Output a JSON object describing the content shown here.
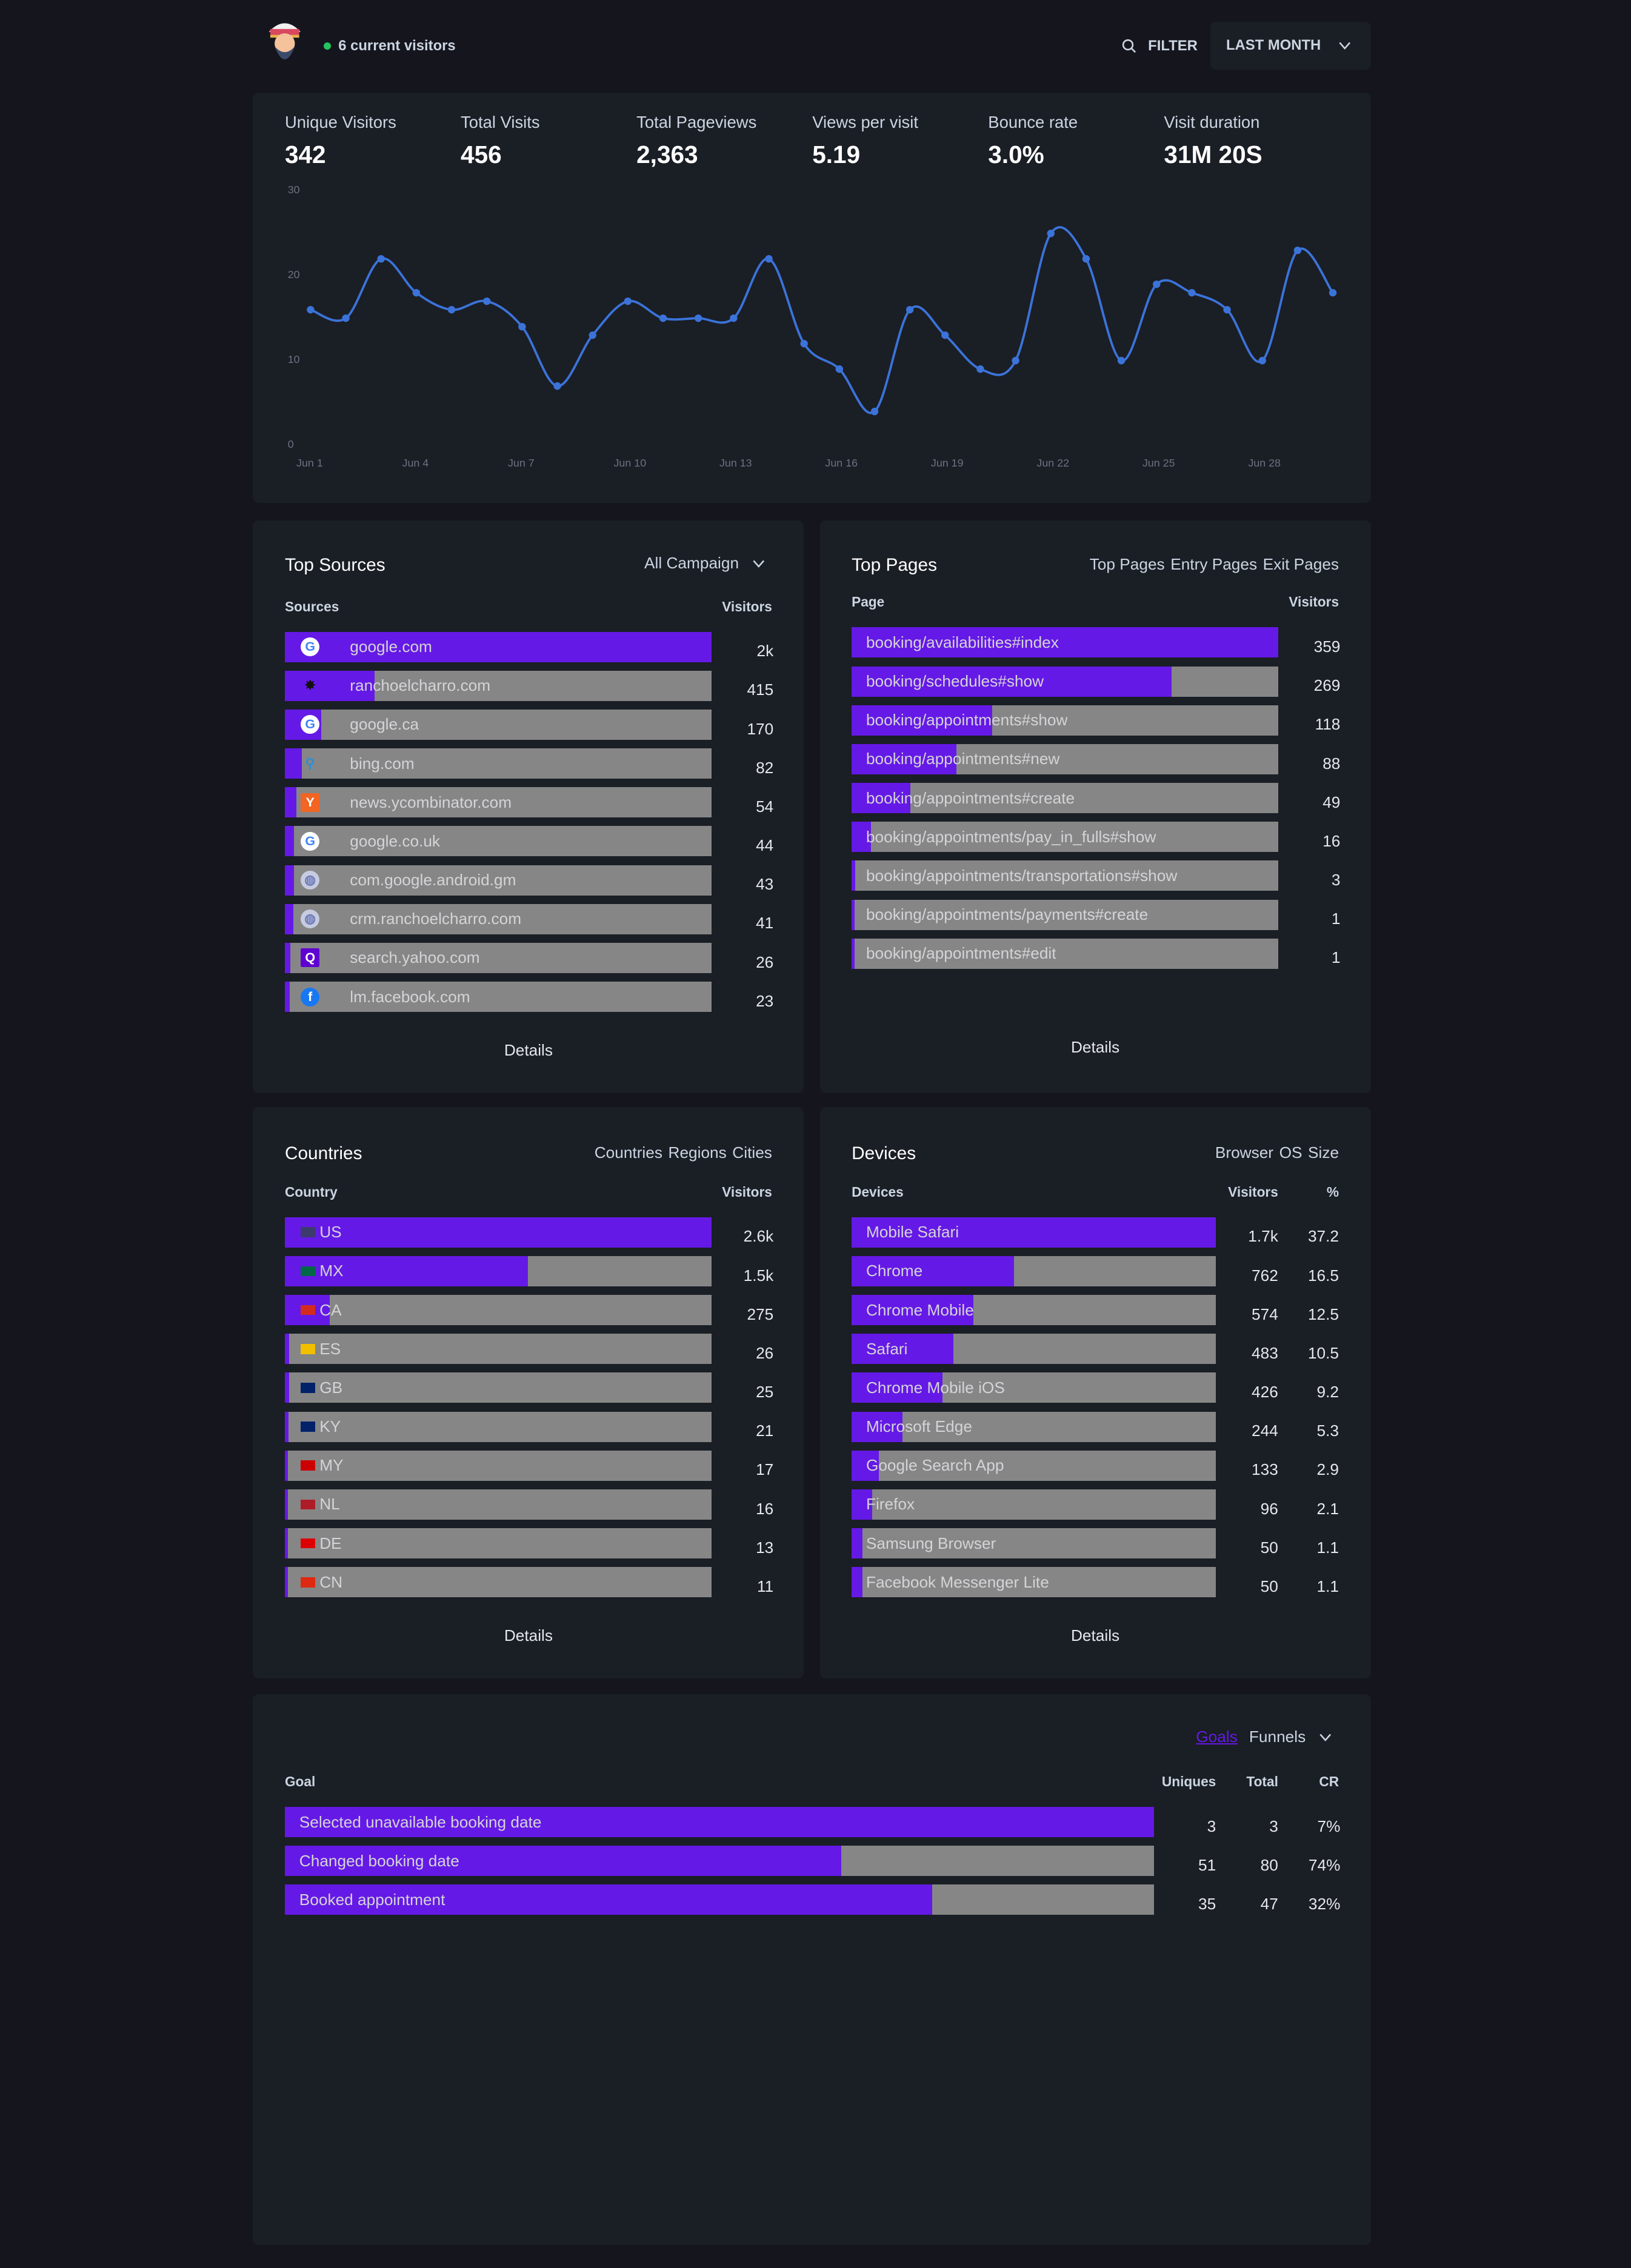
{
  "header": {
    "live": "6 current visitors",
    "filter": "FILTER",
    "period": "LAST MONTH"
  },
  "stats": [
    {
      "label": "Unique Visitors",
      "value": "342"
    },
    {
      "label": "Total Visits",
      "value": "456"
    },
    {
      "label": "Total Pageviews",
      "value": "2,363"
    },
    {
      "label": "Views per visit",
      "value": "5.19"
    },
    {
      "label": "Bounce rate",
      "value": "3.0%"
    },
    {
      "label": "Visit duration",
      "value": "31M 20S"
    }
  ],
  "chart_data": {
    "type": "line",
    "x": [
      "Jun 1",
      "Jun 2",
      "Jun 3",
      "Jun 4",
      "Jun 5",
      "Jun 6",
      "Jun 7",
      "Jun 8",
      "Jun 9",
      "Jun 10",
      "Jun 11",
      "Jun 12",
      "Jun 13",
      "Jun 14",
      "Jun 15",
      "Jun 16",
      "Jun 17",
      "Jun 18",
      "Jun 19",
      "Jun 20",
      "Jun 21",
      "Jun 22",
      "Jun 23",
      "Jun 24",
      "Jun 25",
      "Jun 26",
      "Jun 27",
      "Jun 28",
      "Jun 29",
      "Jun 30"
    ],
    "values": [
      16,
      15,
      22,
      18,
      16,
      17,
      14,
      7,
      13,
      17,
      15,
      15,
      15,
      22,
      12,
      9,
      4,
      16,
      13,
      9,
      10,
      25,
      22,
      10,
      19,
      18,
      16,
      10,
      23,
      18
    ],
    "xticks": [
      "Jun 1",
      "Jun 4",
      "Jun 7",
      "Jun 10",
      "Jun 13",
      "Jun 16",
      "Jun 19",
      "Jun 22",
      "Jun 25",
      "Jun 28"
    ],
    "yticks": [
      "0",
      "10",
      "20",
      "30"
    ],
    "ylim": [
      0,
      30
    ],
    "color": "#3b73d9"
  },
  "sources": {
    "title": "Top Sources",
    "filter": "All Campaign",
    "col1": "Sources",
    "col2": "Visitors",
    "details": "Details",
    "rows": [
      {
        "label": "google.com",
        "value": "2k",
        "fill": 1,
        "icon": "google-icon"
      },
      {
        "label": "ranchoelcharro.com",
        "value": "415",
        "fill": 0.21,
        "icon": "ranch-icon"
      },
      {
        "label": "google.ca",
        "value": "170",
        "fill": 0.085,
        "icon": "google-icon"
      },
      {
        "label": "bing.com",
        "value": "82",
        "fill": 0.04,
        "icon": "bing-icon"
      },
      {
        "label": "news.ycombinator.com",
        "value": "54",
        "fill": 0.027,
        "icon": "ycombinator-icon"
      },
      {
        "label": "google.co.uk",
        "value": "44",
        "fill": 0.022,
        "icon": "google-icon"
      },
      {
        "label": "com.google.android.gm",
        "value": "43",
        "fill": 0.021,
        "icon": "globe-icon"
      },
      {
        "label": "crm.ranchoelcharro.com",
        "value": "41",
        "fill": 0.02,
        "icon": "globe-icon"
      },
      {
        "label": "search.yahoo.com",
        "value": "26",
        "fill": 0.013,
        "icon": "yahoo-icon"
      },
      {
        "label": "lm.facebook.com",
        "value": "23",
        "fill": 0.011,
        "icon": "facebook-icon"
      }
    ]
  },
  "pages": {
    "title": "Top Pages",
    "tabs": [
      "Top Pages",
      "Entry Pages",
      "Exit Pages"
    ],
    "col1": "Page",
    "col2": "Visitors",
    "details": "Details",
    "rows": [
      {
        "label": "booking/availabilities#index",
        "value": "359",
        "fill": 1
      },
      {
        "label": "booking/schedules#show",
        "value": "269",
        "fill": 0.75
      },
      {
        "label": "booking/appointments#show",
        "value": "118",
        "fill": 0.33
      },
      {
        "label": "booking/appointments#new",
        "value": "88",
        "fill": 0.245
      },
      {
        "label": "booking/appointments#create",
        "value": "49",
        "fill": 0.137
      },
      {
        "label": "booking/appointments/pay_in_fulls#show",
        "value": "16",
        "fill": 0.045
      },
      {
        "label": "booking/appointments/transportations#show",
        "value": "3",
        "fill": 0.008
      },
      {
        "label": "booking/appointments/payments#create",
        "value": "1",
        "fill": 0.003
      },
      {
        "label": "booking/appointments#edit",
        "value": "1",
        "fill": 0.003
      }
    ]
  },
  "countries": {
    "title": "Countries",
    "tabs": [
      "Countries",
      "Regions",
      "Cities"
    ],
    "col1": "Country",
    "col2": "Visitors",
    "details": "Details",
    "rows": [
      {
        "label": "US",
        "value": "2.6k",
        "fill": 1,
        "flag": "#3c3b6e"
      },
      {
        "label": "MX",
        "value": "1.5k",
        "fill": 0.57,
        "flag": "#006847"
      },
      {
        "label": "CA",
        "value": "275",
        "fill": 0.105,
        "flag": "#d52b1e"
      },
      {
        "label": "ES",
        "value": "26",
        "fill": 0.01,
        "flag": "#f1bf00"
      },
      {
        "label": "GB",
        "value": "25",
        "fill": 0.01,
        "flag": "#012169"
      },
      {
        "label": "KY",
        "value": "21",
        "fill": 0.008,
        "flag": "#012169"
      },
      {
        "label": "MY",
        "value": "17",
        "fill": 0.007,
        "flag": "#cc0001"
      },
      {
        "label": "NL",
        "value": "16",
        "fill": 0.006,
        "flag": "#ae1c28"
      },
      {
        "label": "DE",
        "value": "13",
        "fill": 0.005,
        "flag": "#dd0000"
      },
      {
        "label": "CN",
        "value": "11",
        "fill": 0.004,
        "flag": "#de2910"
      }
    ]
  },
  "devices": {
    "title": "Devices",
    "tabs": [
      "Browser",
      "OS",
      "Size"
    ],
    "col1": "Devices",
    "col2": "Visitors",
    "col3": "%",
    "details": "Details",
    "rows": [
      {
        "label": "Mobile Safari",
        "value": "1.7k",
        "pct": "37.2",
        "fill": 1
      },
      {
        "label": "Chrome",
        "value": "762",
        "pct": "16.5",
        "fill": 0.445
      },
      {
        "label": "Chrome Mobile",
        "value": "574",
        "pct": "12.5",
        "fill": 0.335
      },
      {
        "label": "Safari",
        "value": "483",
        "pct": "10.5",
        "fill": 0.28
      },
      {
        "label": "Chrome Mobile iOS",
        "value": "426",
        "pct": "9.2",
        "fill": 0.25
      },
      {
        "label": "Microsoft Edge",
        "value": "244",
        "pct": "5.3",
        "fill": 0.14
      },
      {
        "label": "Google Search App",
        "value": "133",
        "pct": "2.9",
        "fill": 0.075
      },
      {
        "label": "Firefox",
        "value": "96",
        "pct": "2.1",
        "fill": 0.056
      },
      {
        "label": "Samsung Browser",
        "value": "50",
        "pct": "1.1",
        "fill": 0.03
      },
      {
        "label": "Facebook Messenger Lite",
        "value": "50",
        "pct": "1.1",
        "fill": 0.03
      }
    ]
  },
  "goals": {
    "tab_goals": "Goals",
    "tab_funnels": "Funnels",
    "col1": "Goal",
    "col2": "Uniques",
    "col3": "Total",
    "col4": "CR",
    "rows": [
      {
        "label": "Selected unavailable booking date",
        "uniques": "3",
        "total": "3",
        "cr": "7%",
        "fill": 1
      },
      {
        "label": "Changed booking date",
        "uniques": "51",
        "total": "80",
        "cr": "74%",
        "fill": 0.64
      },
      {
        "label": "Booked appointment",
        "uniques": "35",
        "total": "47",
        "cr": "32%",
        "fill": 0.745
      }
    ]
  }
}
